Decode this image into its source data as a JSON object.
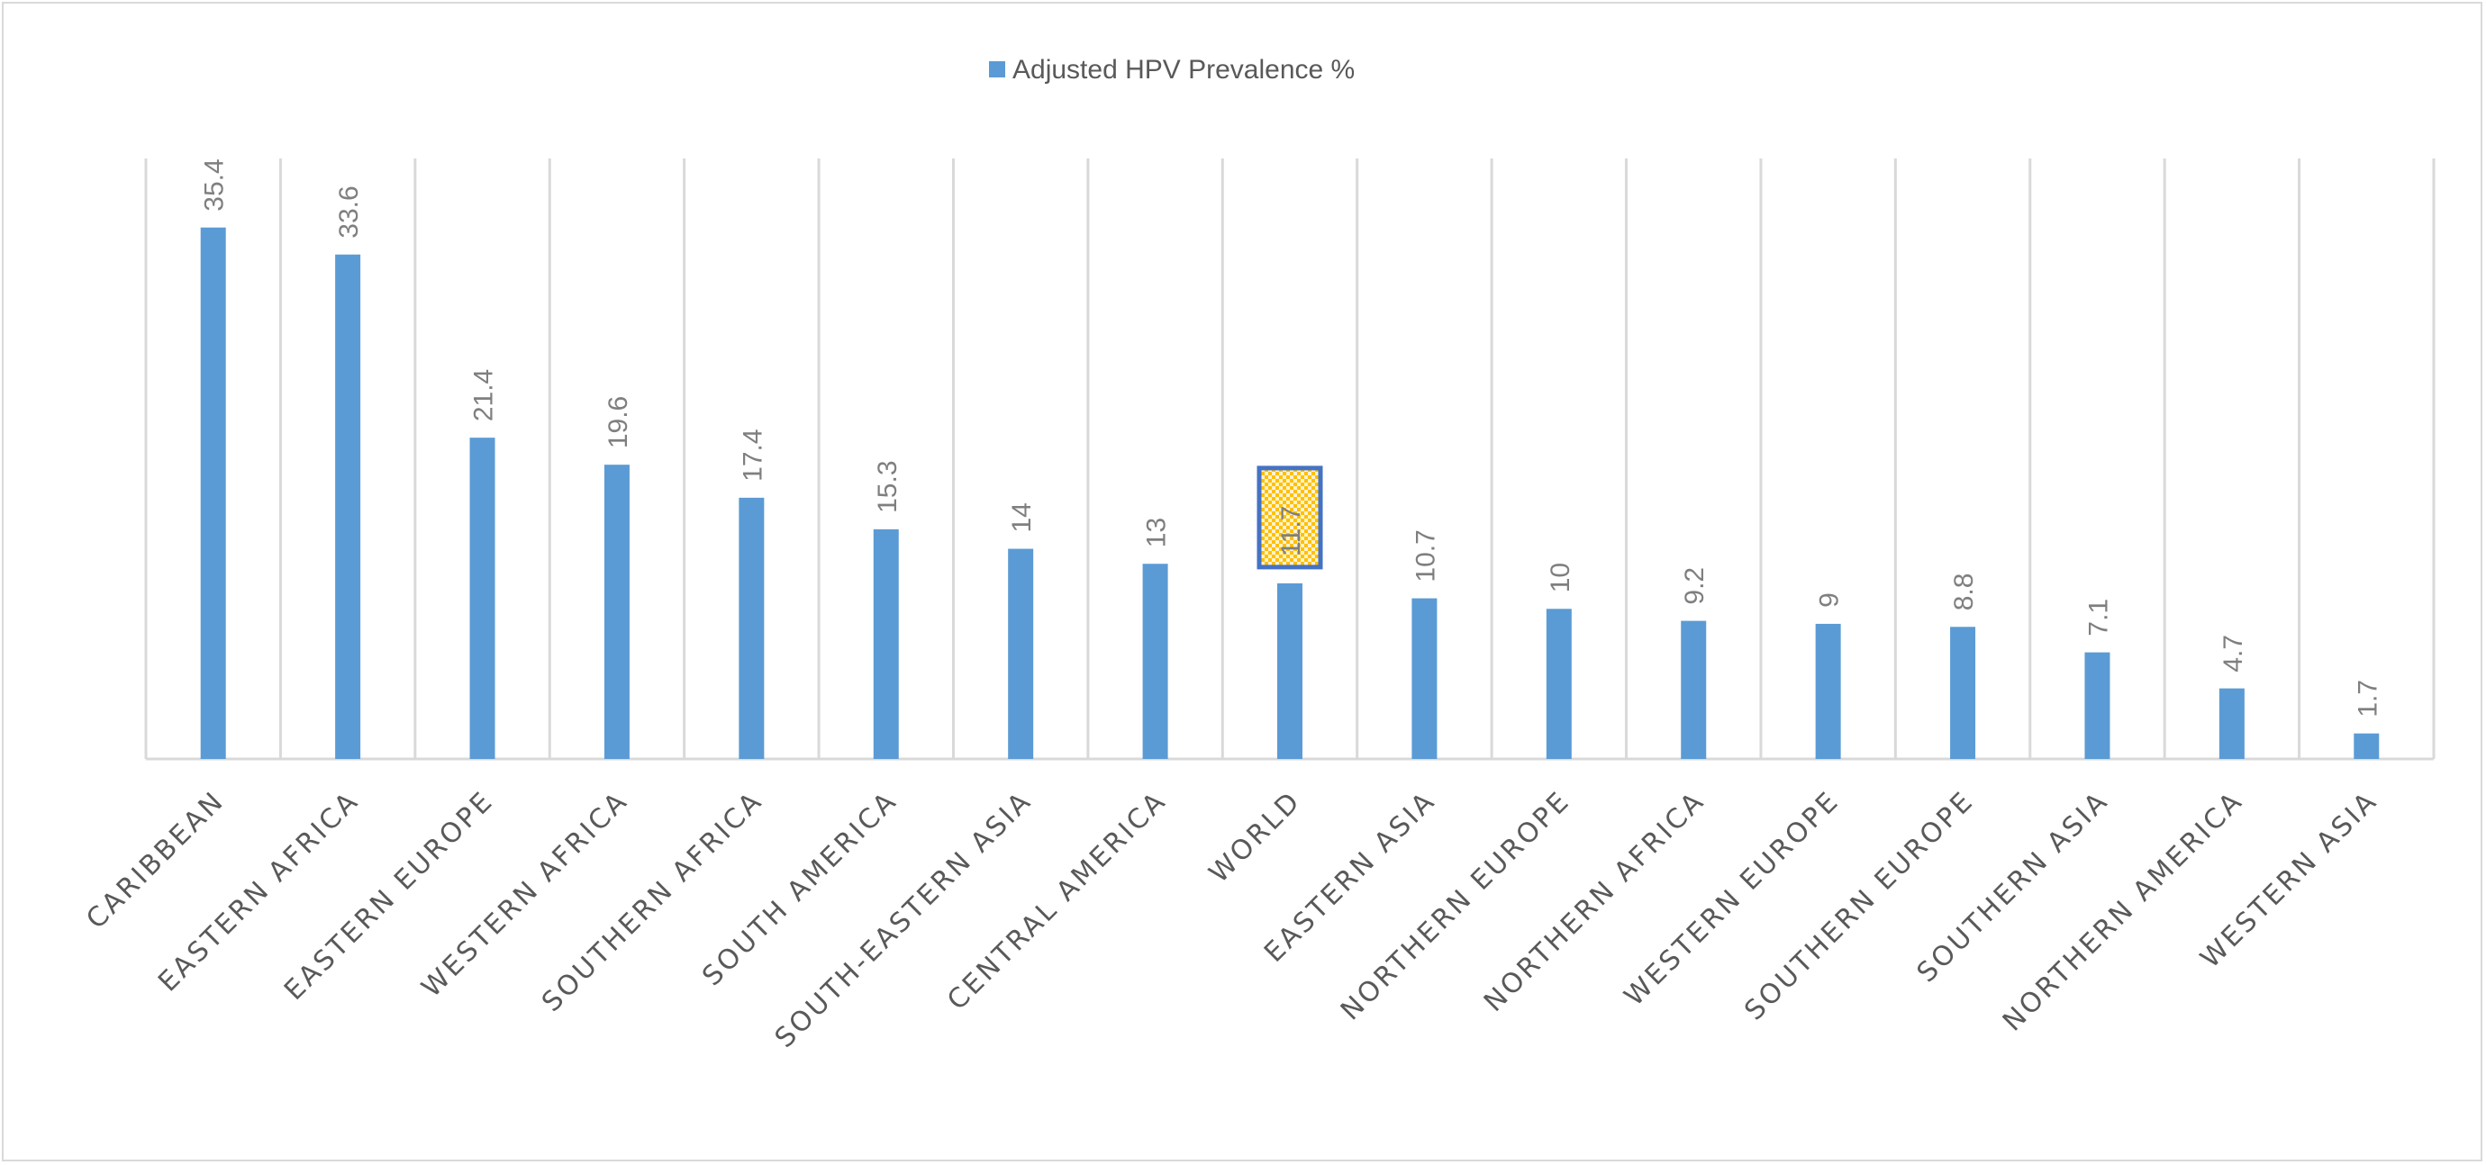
{
  "chart_data": {
    "type": "bar",
    "title": "",
    "legend": {
      "entries": [
        "Adjusted HPV Prevalence %"
      ],
      "placement": "top-center"
    },
    "xlabel": "",
    "ylabel": "",
    "ylim": [
      0,
      40
    ],
    "grid": "vertical",
    "categories": [
      "CARIBBEAN",
      "EASTERN AFRICA",
      "EASTERN EUROPE",
      "WESTERN AFRICA",
      "SOUTHERN AFRICA",
      "SOUTH AMERICA",
      "SOUTH-EASTERN ASIA",
      "CENTRAL AMERICA",
      "WORLD",
      "EASTERN ASIA",
      "NORTHERN EUROPE",
      "NORTHERN AFRICA",
      "WESTERN EUROPE",
      "SOUTHERN EUROPE",
      "SOUTHERN ASIA",
      "NORTHERN AMERICA",
      "WESTERN ASIA"
    ],
    "series": [
      {
        "name": "Adjusted HPV Prevalence %",
        "values": [
          35.4,
          33.6,
          21.4,
          19.6,
          17.4,
          15.3,
          14,
          13,
          11.7,
          10.7,
          10,
          9.2,
          9,
          8.8,
          7.1,
          4.7,
          1.7
        ]
      }
    ],
    "highlighted_label": "WORLD",
    "colors": {
      "bar": "#5b9bd5",
      "highlight_fill": "#ffc000",
      "highlight_border": "#4472c4",
      "label": "#595959",
      "grid": "#d9d9d9"
    }
  }
}
